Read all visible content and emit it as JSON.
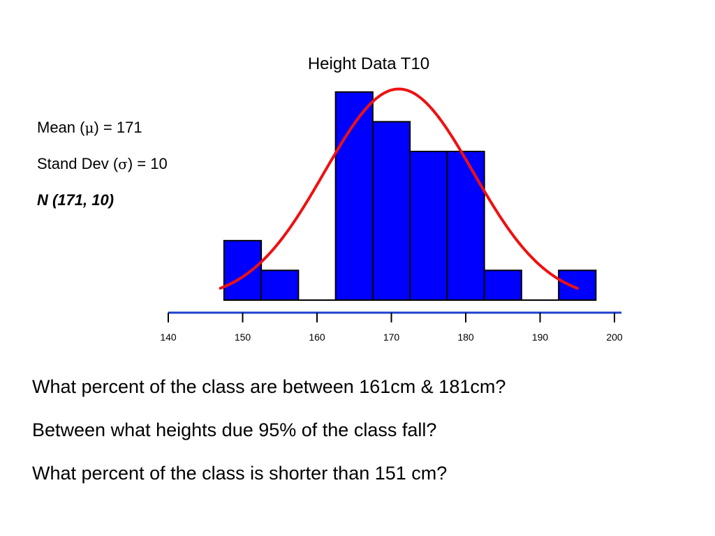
{
  "stats": {
    "mean_label": "Mean (",
    "mean_symbol": "μ",
    "mean_suffix": ") =  171",
    "sd_label": "Stand Dev (",
    "sd_symbol": "σ",
    "sd_suffix": ") = 10",
    "distribution": "N (171, 10)"
  },
  "questions": [
    "What percent of the class are between  161cm & 181cm?",
    "Between what heights due 95% of the class fall?",
    "What percent of the class is shorter than 151 cm?"
  ],
  "chart_data": {
    "type": "bar",
    "title": "Height Data T10",
    "xlabel": "",
    "ylabel": "",
    "xlim": [
      140,
      200
    ],
    "xticks": [
      140,
      150,
      160,
      170,
      180,
      190,
      200
    ],
    "bins": [
      {
        "start": 147.5,
        "end": 152.5,
        "value": 2
      },
      {
        "start": 152.5,
        "end": 157.5,
        "value": 1
      },
      {
        "start": 157.5,
        "end": 162.5,
        "value": 0
      },
      {
        "start": 162.5,
        "end": 167.5,
        "value": 7
      },
      {
        "start": 167.5,
        "end": 172.5,
        "value": 6
      },
      {
        "start": 172.5,
        "end": 177.5,
        "value": 5
      },
      {
        "start": 177.5,
        "end": 182.5,
        "value": 5
      },
      {
        "start": 182.5,
        "end": 187.5,
        "value": 1
      },
      {
        "start": 187.5,
        "end": 192.5,
        "value": 0
      },
      {
        "start": 192.5,
        "end": 197.5,
        "value": 1
      }
    ],
    "curve": {
      "type": "normal",
      "mean": 171,
      "sd": 10,
      "x_range": [
        147,
        195
      ],
      "peak": 7.1,
      "color": "#ee1111"
    },
    "bar_color": "#0000ff",
    "axis_color": "#1f3fcf",
    "grid": false
  }
}
